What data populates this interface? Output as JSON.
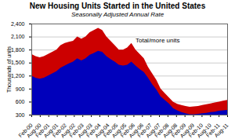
{
  "chart_data": {
    "type": "area",
    "title": "New Housing Units Started in the United States",
    "subtitle": "Seasonally Adjusted  Annual Rate",
    "ylabel": "Thousands of units",
    "annotations": [
      {
        "text": "Total/more units",
        "x": 24.91,
        "y": 1980
      }
    ],
    "x": [
      0,
      1,
      2,
      3,
      4,
      5,
      6,
      7,
      8,
      9,
      10,
      11,
      12,
      13,
      14,
      15,
      16,
      17,
      18,
      19,
      20,
      21,
      22,
      23,
      24,
      25,
      26,
      27,
      28,
      29,
      30,
      31,
      32,
      33,
      34,
      35,
      36,
      37,
      38,
      39,
      40,
      41,
      42,
      43,
      44,
      45,
      46,
      47
    ],
    "series": [
      {
        "color": "#cc0000",
        "values": [
          1700,
          1650,
          1620,
          1650,
          1700,
          1750,
          1800,
          1900,
          1950,
          1980,
          2000,
          2100,
          2050,
          2100,
          2200,
          2250,
          2300,
          2250,
          2100,
          2000,
          1900,
          1800,
          1800,
          1850,
          1950,
          1800,
          1700,
          1600,
          1400,
          1250,
          1100,
          900,
          800,
          700,
          600,
          550,
          520,
          500,
          480,
          490,
          500,
          520,
          540,
          560,
          580,
          600,
          620,
          640
        ]
      },
      {
        "color": "#0000bb",
        "values": [
          1200,
          1150,
          1130,
          1150,
          1200,
          1250,
          1300,
          1380,
          1430,
          1480,
          1520,
          1600,
          1550,
          1600,
          1680,
          1720,
          1770,
          1750,
          1650,
          1580,
          1520,
          1450,
          1430,
          1450,
          1520,
          1430,
          1350,
          1280,
          1150,
          1000,
          880,
          720,
          640,
          560,
          450,
          400,
          360,
          330,
          310,
          310,
          320,
          330,
          340,
          360,
          370,
          390,
          400,
          410
        ]
      }
    ],
    "xlim": [
      0,
      47
    ],
    "xticks": [
      {
        "value": 0,
        "label": "Feb-00"
      },
      {
        "value": 2.043478,
        "label": "Aug-00"
      },
      {
        "value": 4.086957,
        "label": "Feb-01"
      },
      {
        "value": 6.130435,
        "label": "Aug-01"
      },
      {
        "value": 8.173913,
        "label": "Feb-02"
      },
      {
        "value": 10.217391,
        "label": "Aug-02"
      },
      {
        "value": 12.26087,
        "label": "Feb-03"
      },
      {
        "value": 14.304348,
        "label": "Aug-03"
      },
      {
        "value": 16.347826,
        "label": "Feb-04"
      },
      {
        "value": 18.391304,
        "label": "Aug-04"
      },
      {
        "value": 20.434783,
        "label": "Feb-05"
      },
      {
        "value": 22.478261,
        "label": "Aug-05"
      },
      {
        "value": 24.521739,
        "label": "Feb-06"
      },
      {
        "value": 26.565217,
        "label": "Aug-06"
      },
      {
        "value": 28.608696,
        "label": "Feb-07"
      },
      {
        "value": 30.652174,
        "label": "Aug-07"
      },
      {
        "value": 32.695652,
        "label": "Feb-08"
      },
      {
        "value": 34.73913,
        "label": "Aug-08"
      },
      {
        "value": 36.782609,
        "label": "Feb-09"
      },
      {
        "value": 38.826087,
        "label": "Aug-09"
      },
      {
        "value": 40.869565,
        "label": "Feb-10"
      },
      {
        "value": 42.913043,
        "label": "Aug-10"
      },
      {
        "value": 44.956522,
        "label": "Feb-11"
      },
      {
        "value": 47,
        "label": "Aug-11"
      }
    ],
    "ylim": [
      300,
      2400
    ],
    "yticks": [
      300,
      600,
      900,
      {
        "value": 1200,
        "label": "1,200"
      },
      {
        "value": 1500,
        "label": "1,500"
      },
      {
        "value": 1800,
        "label": "1,800"
      },
      {
        "value": 2100,
        "label": "2,100"
      },
      {
        "value": 2400,
        "label": "2,400"
      }
    ],
    "grid": "y"
  }
}
